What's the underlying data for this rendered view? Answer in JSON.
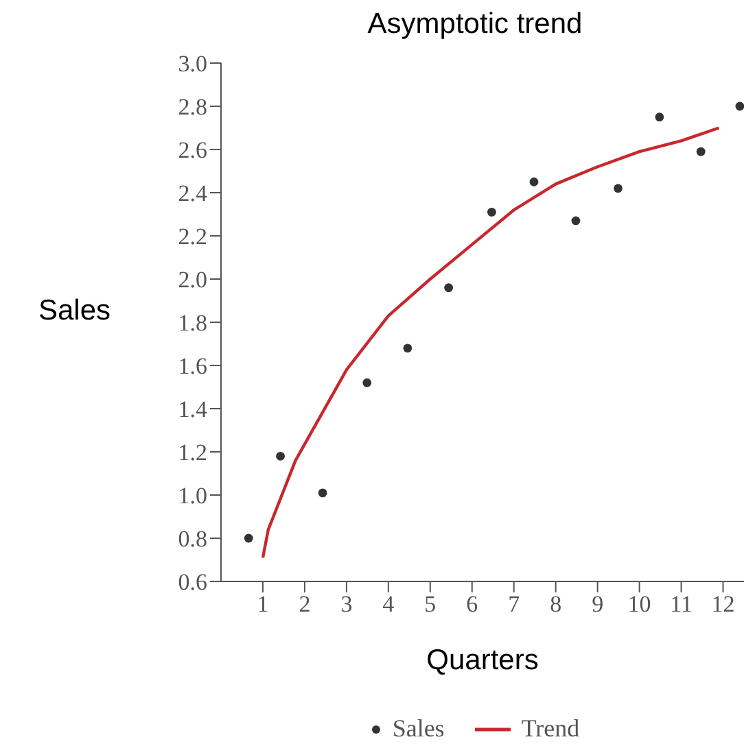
{
  "chart_data": {
    "type": "scatter",
    "title": "Asymptotic trend",
    "xlabel": "Quarters",
    "ylabel": "Sales",
    "xlim": [
      0,
      12.5
    ],
    "xticks": [
      1,
      2,
      3,
      4,
      5,
      6,
      7,
      8,
      9,
      10,
      11,
      12
    ],
    "ylim": [
      0.6,
      3.0
    ],
    "yticks": [
      {
        "value": 0.6,
        "label": "0.6"
      },
      {
        "value": 0.8,
        "label": "0.8"
      },
      {
        "value": 1.0,
        "label": "1.0"
      },
      {
        "value": 1.2,
        "label": "1.2"
      },
      {
        "value": 1.4,
        "label": "1.4"
      },
      {
        "value": 1.6,
        "label": "1.6"
      },
      {
        "value": 1.8,
        "label": "1.8"
      },
      {
        "value": 2.0,
        "label": "2.0"
      },
      {
        "value": 2.2,
        "label": "2.2"
      },
      {
        "value": 2.4,
        "label": "2.4"
      },
      {
        "value": 2.6,
        "label": "2.6"
      },
      {
        "value": 2.8,
        "label": "2.8"
      },
      {
        "value": 3.0,
        "label": "3.0"
      }
    ],
    "grid": false,
    "legend": "bottom",
    "series": [
      {
        "name": "Sales",
        "color": "#333333",
        "marker": "circle",
        "x": [
          0.66,
          1.42,
          2.43,
          3.49,
          4.46,
          5.44,
          6.47,
          7.48,
          8.48,
          9.49,
          10.48,
          11.47,
          12.4
        ],
        "values": [
          0.8,
          1.18,
          1.01,
          1.52,
          1.68,
          1.96,
          2.31,
          2.45,
          2.27,
          2.42,
          2.75,
          2.59,
          2.8
        ]
      },
      {
        "name": "Trend",
        "type": "line",
        "color": "#c8282d",
        "marker": "none",
        "line_style": "solid",
        "x": [
          1,
          1.13,
          1.78,
          3,
          4,
          5,
          6,
          7,
          8,
          9,
          10,
          11,
          11.9
        ],
        "values": [
          0.71,
          0.84,
          1.16,
          1.58,
          1.83,
          2.0,
          2.16,
          2.32,
          2.44,
          2.52,
          2.59,
          2.64,
          2.7
        ]
      }
    ]
  }
}
